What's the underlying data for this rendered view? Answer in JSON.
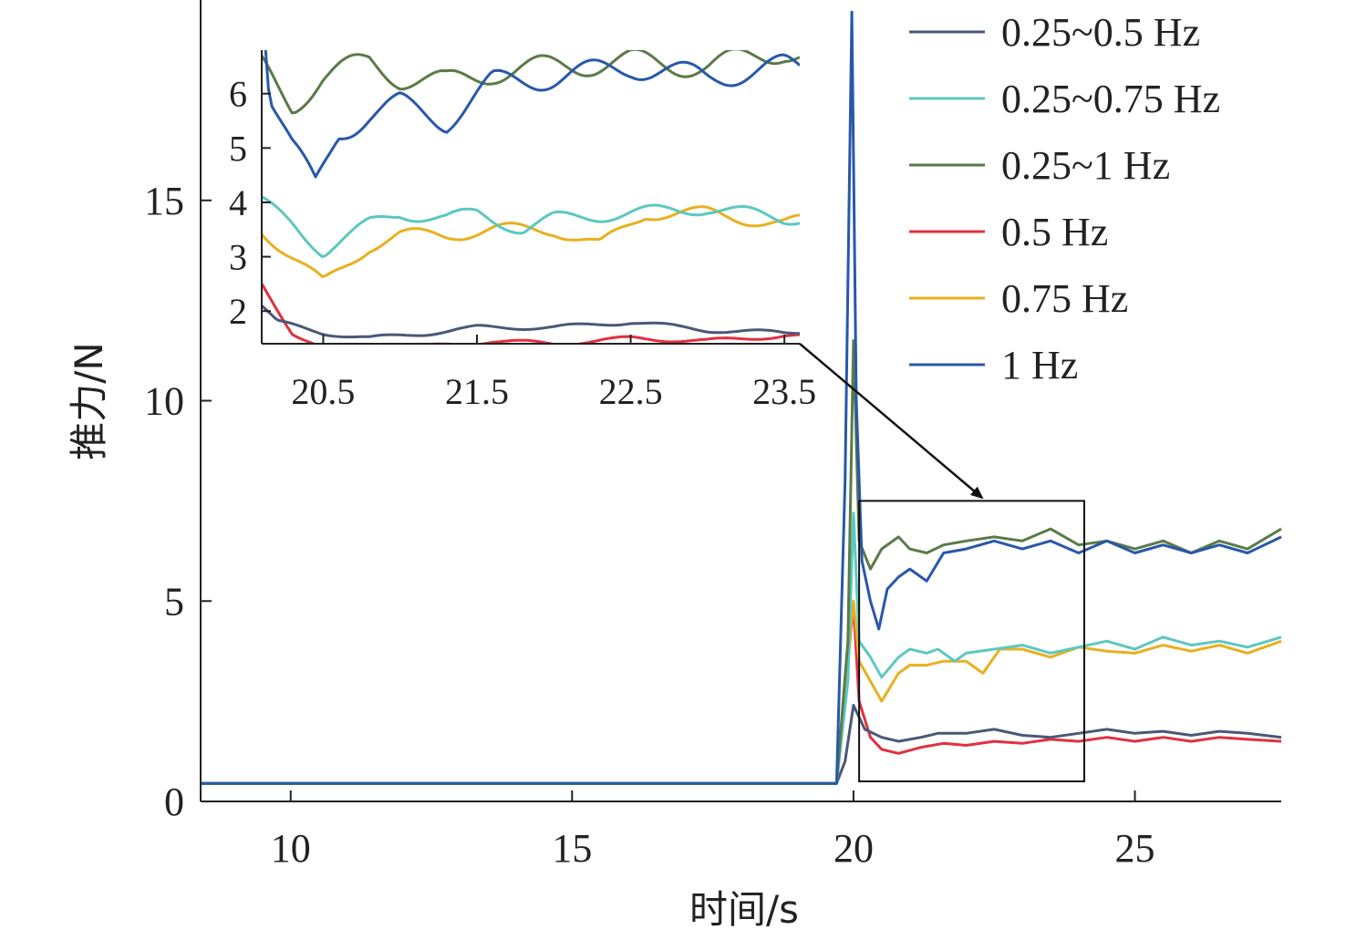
{
  "chart_data": {
    "type": "line",
    "xlabel": "时间/s",
    "ylabel": "推力/N",
    "xlim": [
      8.4,
      27.6
    ],
    "ylim": [
      0,
      20
    ],
    "x_ticks": [
      10,
      15,
      20,
      25
    ],
    "y_ticks": [
      0,
      5,
      10,
      15
    ],
    "grid": false,
    "legend_position": "top-right",
    "series": [
      {
        "name": "0.25~0.5 Hz",
        "color": "#4a5878",
        "points": [
          [
            8.4,
            0.45
          ],
          [
            19.7,
            0.45
          ],
          [
            19.85,
            1.0
          ],
          [
            20.0,
            2.4
          ],
          [
            20.2,
            1.8
          ],
          [
            20.5,
            1.6
          ],
          [
            20.8,
            1.5
          ],
          [
            21.2,
            1.6
          ],
          [
            21.5,
            1.7
          ],
          [
            22.0,
            1.7
          ],
          [
            22.5,
            1.8
          ],
          [
            23.0,
            1.65
          ],
          [
            23.5,
            1.6
          ],
          [
            24.0,
            1.7
          ],
          [
            24.5,
            1.8
          ],
          [
            25.0,
            1.7
          ],
          [
            25.5,
            1.75
          ],
          [
            26.0,
            1.65
          ],
          [
            26.5,
            1.75
          ],
          [
            27.0,
            1.7
          ],
          [
            27.6,
            1.6
          ]
        ]
      },
      {
        "name": "0.25~0.75 Hz",
        "color": "#5cc8c0",
        "points": [
          [
            8.4,
            0.45
          ],
          [
            19.7,
            0.45
          ],
          [
            19.9,
            3.0
          ],
          [
            20.0,
            7.2
          ],
          [
            20.1,
            4.0
          ],
          [
            20.3,
            3.6
          ],
          [
            20.5,
            3.1
          ],
          [
            20.8,
            3.6
          ],
          [
            21.0,
            3.8
          ],
          [
            21.3,
            3.7
          ],
          [
            21.5,
            3.8
          ],
          [
            21.8,
            3.5
          ],
          [
            22.0,
            3.7
          ],
          [
            22.5,
            3.8
          ],
          [
            23.0,
            3.9
          ],
          [
            23.5,
            3.7
          ],
          [
            24.0,
            3.85
          ],
          [
            24.5,
            4.0
          ],
          [
            25.0,
            3.8
          ],
          [
            25.5,
            4.1
          ],
          [
            26.0,
            3.9
          ],
          [
            26.5,
            4.0
          ],
          [
            27.0,
            3.85
          ],
          [
            27.6,
            4.1
          ]
        ]
      },
      {
        "name": "0.25~1 Hz",
        "color": "#5a7a48",
        "points": [
          [
            8.4,
            0.45
          ],
          [
            19.7,
            0.45
          ],
          [
            19.9,
            4.0
          ],
          [
            20.0,
            11.5
          ],
          [
            20.1,
            6.5
          ],
          [
            20.3,
            5.8
          ],
          [
            20.5,
            6.3
          ],
          [
            20.8,
            6.6
          ],
          [
            21.0,
            6.3
          ],
          [
            21.3,
            6.2
          ],
          [
            21.6,
            6.4
          ],
          [
            22.0,
            6.5
          ],
          [
            22.5,
            6.6
          ],
          [
            23.0,
            6.5
          ],
          [
            23.5,
            6.8
          ],
          [
            24.0,
            6.4
          ],
          [
            24.5,
            6.5
          ],
          [
            25.0,
            6.3
          ],
          [
            25.5,
            6.5
          ],
          [
            26.0,
            6.2
          ],
          [
            26.5,
            6.5
          ],
          [
            27.0,
            6.3
          ],
          [
            27.6,
            6.8
          ]
        ]
      },
      {
        "name": "0.5 Hz",
        "color": "#e23040",
        "points": [
          [
            8.4,
            0.45
          ],
          [
            19.7,
            0.45
          ],
          [
            19.9,
            3.5
          ],
          [
            20.0,
            4.9
          ],
          [
            20.1,
            2.5
          ],
          [
            20.3,
            1.6
          ],
          [
            20.5,
            1.3
          ],
          [
            20.8,
            1.2
          ],
          [
            21.2,
            1.35
          ],
          [
            21.6,
            1.45
          ],
          [
            22.0,
            1.4
          ],
          [
            22.5,
            1.5
          ],
          [
            23.0,
            1.45
          ],
          [
            23.5,
            1.55
          ],
          [
            24.0,
            1.5
          ],
          [
            24.5,
            1.6
          ],
          [
            25.0,
            1.5
          ],
          [
            25.5,
            1.6
          ],
          [
            26.0,
            1.5
          ],
          [
            26.5,
            1.6
          ],
          [
            27.0,
            1.55
          ],
          [
            27.6,
            1.5
          ]
        ]
      },
      {
        "name": "0.75 Hz",
        "color": "#e8b020",
        "points": [
          [
            8.4,
            0.45
          ],
          [
            19.7,
            0.45
          ],
          [
            19.9,
            3.5
          ],
          [
            20.0,
            5.0
          ],
          [
            20.1,
            3.5
          ],
          [
            20.3,
            3.0
          ],
          [
            20.5,
            2.5
          ],
          [
            20.8,
            3.2
          ],
          [
            21.0,
            3.4
          ],
          [
            21.3,
            3.4
          ],
          [
            21.6,
            3.5
          ],
          [
            22.0,
            3.5
          ],
          [
            22.3,
            3.2
          ],
          [
            22.6,
            3.8
          ],
          [
            23.0,
            3.8
          ],
          [
            23.5,
            3.6
          ],
          [
            24.0,
            3.85
          ],
          [
            24.5,
            3.75
          ],
          [
            25.0,
            3.7
          ],
          [
            25.5,
            3.9
          ],
          [
            26.0,
            3.75
          ],
          [
            26.5,
            3.9
          ],
          [
            27.0,
            3.7
          ],
          [
            27.6,
            4.0
          ]
        ]
      },
      {
        "name": "1 Hz",
        "color": "#2858a8",
        "points": [
          [
            8.4,
            0.45
          ],
          [
            19.7,
            0.45
          ],
          [
            19.85,
            8.0
          ],
          [
            19.97,
            19.7
          ],
          [
            20.05,
            10.0
          ],
          [
            20.15,
            6.0
          ],
          [
            20.3,
            5.0
          ],
          [
            20.45,
            4.3
          ],
          [
            20.6,
            5.3
          ],
          [
            20.8,
            5.6
          ],
          [
            21.0,
            5.8
          ],
          [
            21.3,
            5.5
          ],
          [
            21.6,
            6.2
          ],
          [
            22.0,
            6.3
          ],
          [
            22.5,
            6.5
          ],
          [
            23.0,
            6.3
          ],
          [
            23.5,
            6.5
          ],
          [
            24.0,
            6.2
          ],
          [
            24.5,
            6.5
          ],
          [
            25.0,
            6.2
          ],
          [
            25.5,
            6.4
          ],
          [
            26.0,
            6.2
          ],
          [
            26.5,
            6.4
          ],
          [
            27.0,
            6.2
          ],
          [
            27.6,
            6.6
          ]
        ]
      }
    ],
    "inset": {
      "xlim": [
        20.1,
        23.6
      ],
      "ylim": [
        1.4,
        6.8
      ],
      "x_ticks": [
        "20.5",
        "21.5",
        "22.5",
        "23.5"
      ],
      "y_ticks": [
        "2",
        "3",
        "4",
        "5",
        "6"
      ],
      "zoom_region": {
        "x": [
          20.1,
          24.1
        ],
        "y": [
          0.5,
          7.5
        ]
      }
    }
  }
}
